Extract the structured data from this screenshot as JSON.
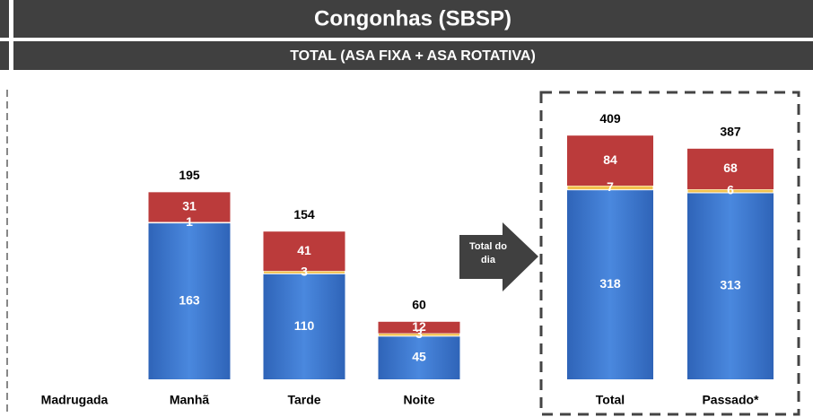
{
  "title": "Congonhas (SBSP)",
  "subtitle": "TOTAL (ASA FIXA + ASA ROTATIVA)",
  "arrow_label": "Total do dia",
  "chart_data": [
    {
      "type": "bar",
      "stacked": true,
      "categories": [
        "Madrugada",
        "Manhã",
        "Tarde",
        "Noite"
      ],
      "series": [
        {
          "color": "#3d7ad3",
          "values": [
            null,
            163,
            110,
            45
          ]
        },
        {
          "color": "#f2c14e",
          "values": [
            null,
            1,
            3,
            3
          ]
        },
        {
          "color": "#bb3b3b",
          "values": [
            null,
            31,
            41,
            12
          ]
        }
      ],
      "totals": [
        null,
        195,
        154,
        60
      ],
      "ylim": [
        0,
        300
      ]
    },
    {
      "type": "bar",
      "stacked": true,
      "categories": [
        "Total",
        "Passado*"
      ],
      "series": [
        {
          "color": "#3d7ad3",
          "values": [
            318,
            313
          ]
        },
        {
          "color": "#f2c14e",
          "values": [
            7,
            6
          ]
        },
        {
          "color": "#bb3b3b",
          "values": [
            84,
            68
          ]
        }
      ],
      "totals": [
        409,
        387
      ],
      "ylim": [
        0,
        480
      ]
    }
  ]
}
